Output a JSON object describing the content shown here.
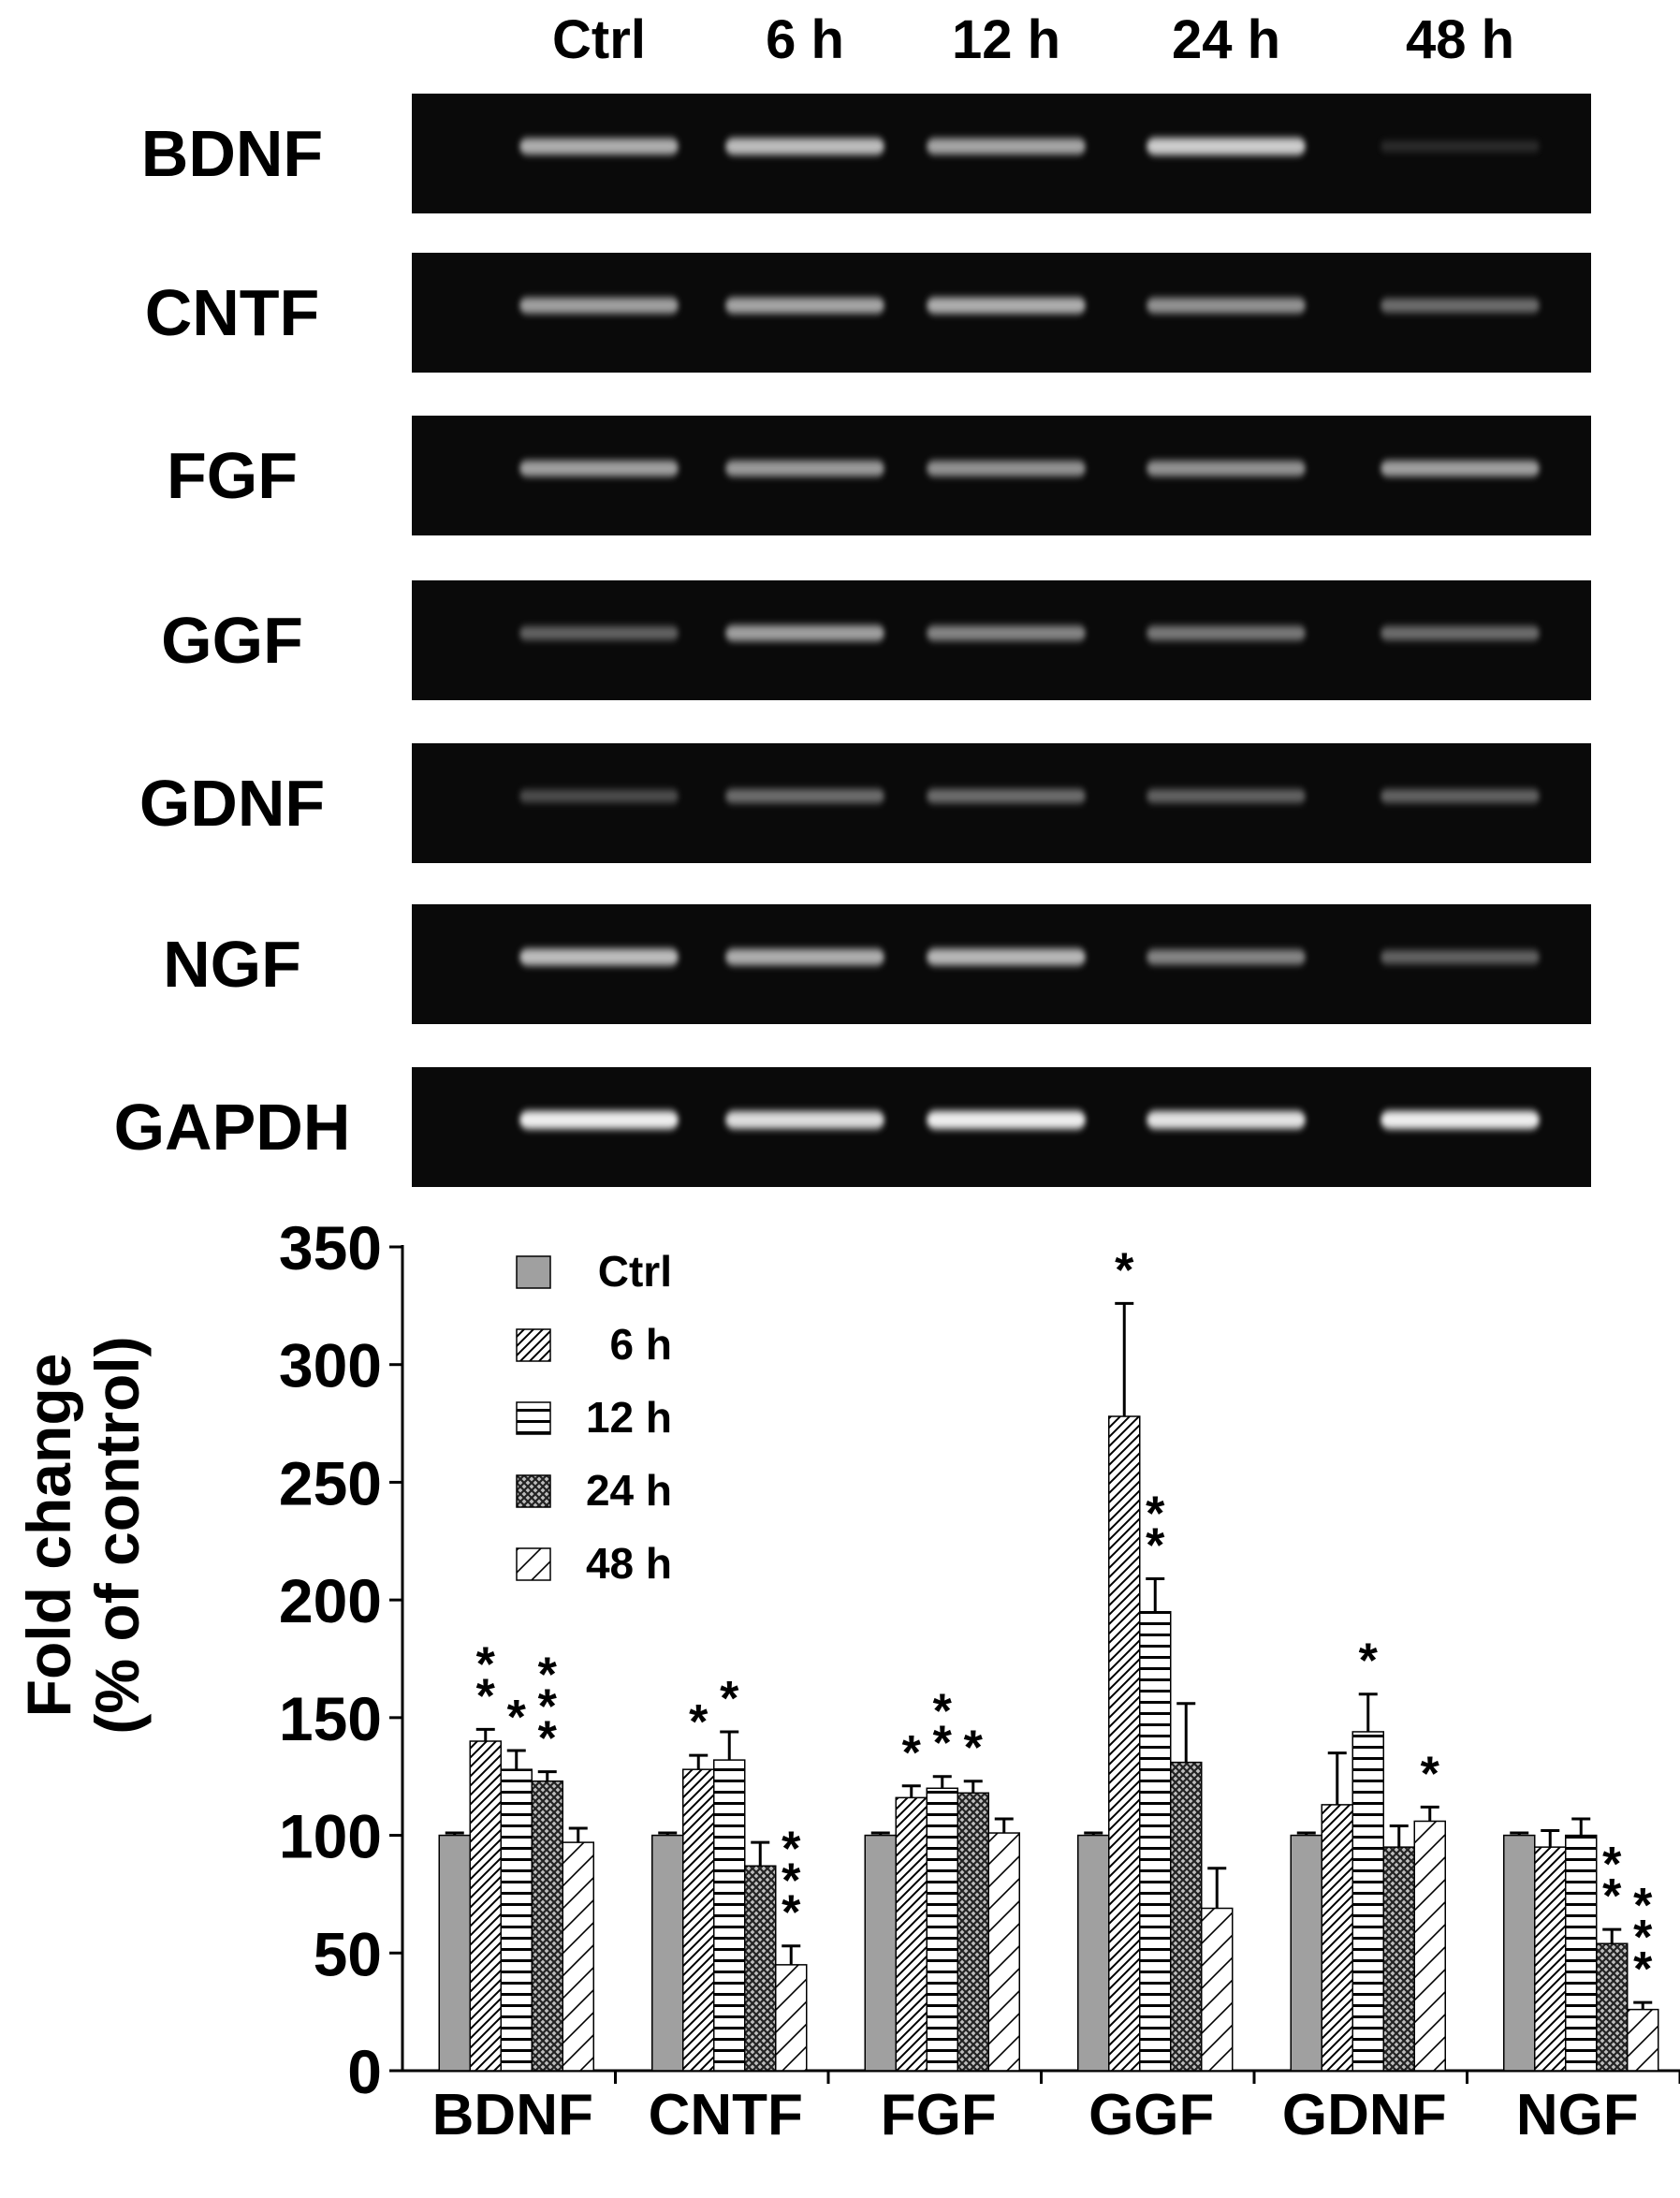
{
  "gel": {
    "lane_labels": [
      "Ctrl",
      "6 h",
      "12 h",
      "24 h",
      "48 h"
    ],
    "rows": [
      {
        "label": "BDNF",
        "band_intensity": [
          0.75,
          0.8,
          0.72,
          0.85,
          0.15
        ]
      },
      {
        "label": "CNTF",
        "band_intensity": [
          0.7,
          0.72,
          0.75,
          0.65,
          0.5
        ]
      },
      {
        "label": "FGF",
        "band_intensity": [
          0.7,
          0.68,
          0.65,
          0.65,
          0.7
        ]
      },
      {
        "label": "GGF",
        "band_intensity": [
          0.45,
          0.7,
          0.6,
          0.55,
          0.5
        ]
      },
      {
        "label": "GDNF",
        "band_intensity": [
          0.35,
          0.5,
          0.5,
          0.45,
          0.45
        ]
      },
      {
        "label": "NGF",
        "band_intensity": [
          0.8,
          0.75,
          0.78,
          0.6,
          0.45
        ]
      },
      {
        "label": "GAPDH",
        "band_intensity": [
          0.95,
          0.9,
          0.95,
          0.92,
          0.95
        ]
      }
    ]
  },
  "chart_data": {
    "type": "bar",
    "ylabel_line1": "Fold change",
    "ylabel_line2": "(% of control)",
    "ylim": [
      0,
      350
    ],
    "yticks": [
      0,
      50,
      100,
      150,
      200,
      250,
      300,
      350
    ],
    "categories": [
      "BDNF",
      "CNTF",
      "FGF",
      "GGF",
      "GDNF",
      "NGF"
    ],
    "legend_position": "top-left",
    "series": [
      {
        "name": "Ctrl",
        "pattern": "solid-gray",
        "values": [
          100,
          100,
          100,
          100,
          100,
          100
        ],
        "errors": [
          1,
          1,
          1,
          1,
          1,
          1
        ]
      },
      {
        "name": "6 h",
        "pattern": "diagonal-hatch",
        "values": [
          140,
          128,
          116,
          278,
          113,
          95
        ],
        "errors": [
          5,
          6,
          5,
          48,
          22,
          7
        ]
      },
      {
        "name": "12 h",
        "pattern": "horizontal-stripes",
        "values": [
          128,
          132,
          120,
          195,
          144,
          100
        ],
        "errors": [
          8,
          12,
          5,
          14,
          16,
          7
        ]
      },
      {
        "name": "24 h",
        "pattern": "crosshatch",
        "values": [
          123,
          87,
          118,
          131,
          95,
          54
        ],
        "errors": [
          4,
          10,
          5,
          25,
          9,
          6
        ]
      },
      {
        "name": "48 h",
        "pattern": "diagonal-light",
        "values": [
          97,
          45,
          101,
          69,
          106,
          26
        ],
        "errors": [
          6,
          8,
          6,
          17,
          6,
          3
        ]
      }
    ],
    "significance": [
      {
        "category": 0,
        "series": 1,
        "marks": "**"
      },
      {
        "category": 0,
        "series": 2,
        "marks": "*"
      },
      {
        "category": 0,
        "series": 3,
        "marks": "***"
      },
      {
        "category": 1,
        "series": 1,
        "marks": "*"
      },
      {
        "category": 1,
        "series": 2,
        "marks": "*"
      },
      {
        "category": 1,
        "series": 4,
        "marks": "***"
      },
      {
        "category": 2,
        "series": 1,
        "marks": "*"
      },
      {
        "category": 2,
        "series": 2,
        "marks": "**"
      },
      {
        "category": 2,
        "series": 3,
        "marks": "*"
      },
      {
        "category": 3,
        "series": 1,
        "marks": "*"
      },
      {
        "category": 3,
        "series": 2,
        "marks": "**"
      },
      {
        "category": 4,
        "series": 2,
        "marks": "*"
      },
      {
        "category": 4,
        "series": 4,
        "marks": "*"
      },
      {
        "category": 5,
        "series": 3,
        "marks": "**"
      },
      {
        "category": 5,
        "series": 4,
        "marks": "***"
      }
    ]
  }
}
